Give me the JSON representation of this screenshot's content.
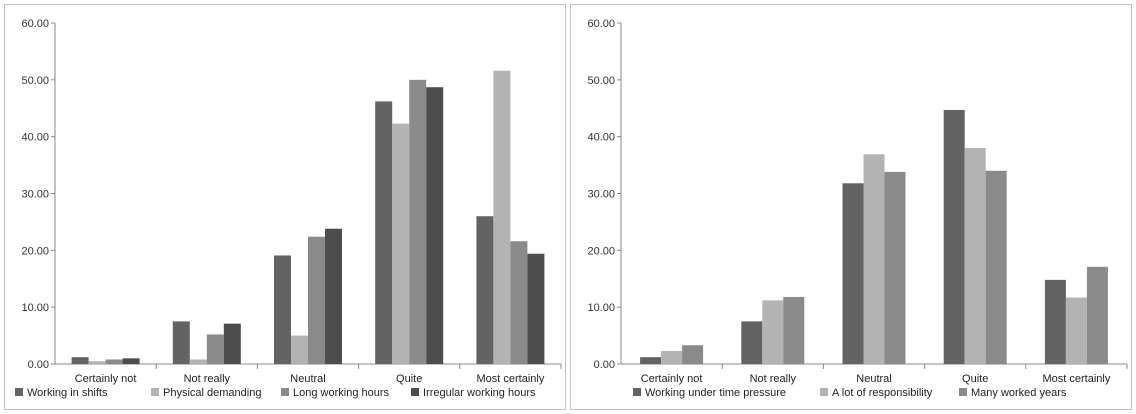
{
  "chart_data": [
    {
      "type": "bar",
      "categories": [
        "Certainly not",
        "Not really",
        "Neutral",
        "Quite",
        "Most certainly"
      ],
      "series": [
        {
          "name": "Working in shifts",
          "color": "#636363",
          "values": [
            1.2,
            7.5,
            19.1,
            46.2,
            26.0
          ]
        },
        {
          "name": "Physical demanding",
          "color": "#b3b3b3",
          "values": [
            0.5,
            0.8,
            5.0,
            42.3,
            51.6
          ]
        },
        {
          "name": "Long working hours",
          "color": "#8a8a8a",
          "values": [
            0.8,
            5.2,
            22.4,
            50.0,
            21.6
          ]
        },
        {
          "name": "Irregular working hours",
          "color": "#4d4d4d",
          "values": [
            1.0,
            7.1,
            23.8,
            48.7,
            19.4
          ]
        }
      ],
      "yticks": [
        "0.00",
        "10.00",
        "20.00",
        "30.00",
        "40.00",
        "50.00",
        "60.00"
      ],
      "ylim": [
        0,
        60
      ],
      "grid": false,
      "legend": "bottom"
    },
    {
      "type": "bar",
      "categories": [
        "Certainly not",
        "Not really",
        "Neutral",
        "Quite",
        "Most certainly"
      ],
      "series": [
        {
          "name": "Working under time pressure",
          "color": "#636363",
          "values": [
            1.2,
            7.5,
            31.8,
            44.7,
            14.8
          ]
        },
        {
          "name": "A lot of responsibility",
          "color": "#b3b3b3",
          "values": [
            2.3,
            11.2,
            36.9,
            38.0,
            11.7
          ]
        },
        {
          "name": "Many worked years",
          "color": "#8a8a8a",
          "values": [
            3.3,
            11.8,
            33.8,
            34.0,
            17.1
          ]
        }
      ],
      "yticks": [
        "0.00",
        "10.00",
        "20.00",
        "30.00",
        "40.00",
        "50.00",
        "60.00"
      ],
      "ylim": [
        0,
        60
      ],
      "grid": false,
      "legend": "bottom"
    }
  ]
}
